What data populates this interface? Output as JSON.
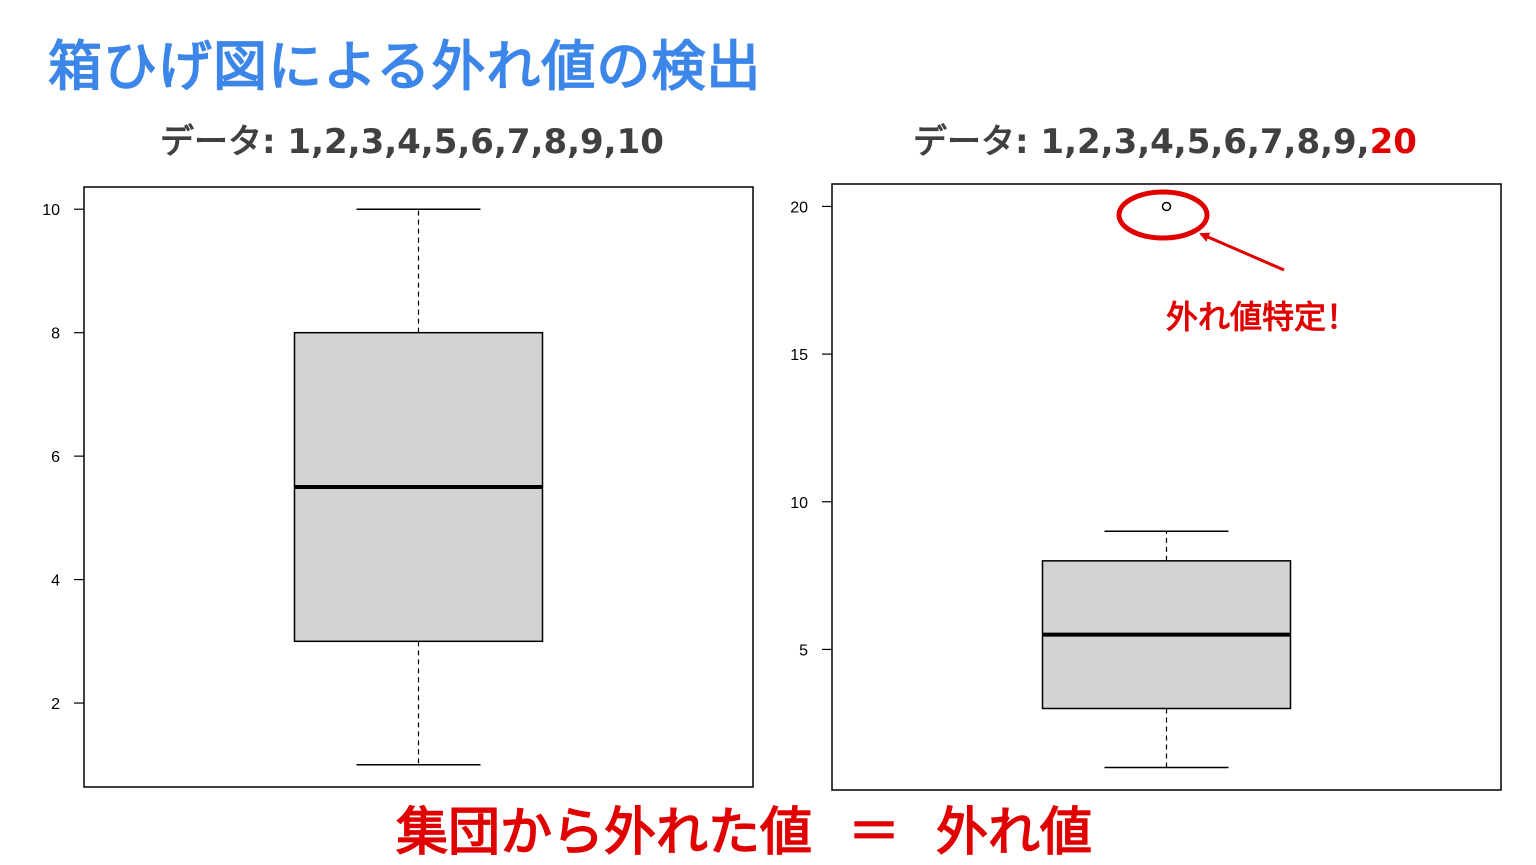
{
  "title": "箱ひげ図による外れ値の検出",
  "annotation": {
    "outlier_label": "外れ値特定！",
    "color": "#e00000"
  },
  "caption": {
    "left": "集団から外れた値",
    "equals": "＝",
    "right": "外れ値"
  },
  "colors": {
    "title": "#3b86e8",
    "highlight": "#e00000",
    "box_fill": "#d3d3d3"
  },
  "chart_data": [
    {
      "type": "boxplot",
      "title_prefix": "データ: 1,2,3,4,5,6,7,8,9,",
      "title_highlight": "",
      "title_suffix": "10",
      "ylim": [
        0.64,
        10.36
      ],
      "yticks": [
        2,
        4,
        6,
        8,
        10
      ],
      "stats": {
        "whisker_low": 1,
        "q1": 3,
        "median": 5.5,
        "q3": 8,
        "whisker_high": 10
      },
      "outliers": []
    },
    {
      "type": "boxplot",
      "title_prefix": "データ: 1,2,3,4,5,6,7,8,9,",
      "title_highlight": "20",
      "title_suffix": "",
      "ylim": [
        0.24,
        20.76
      ],
      "yticks": [
        5,
        10,
        15,
        20
      ],
      "stats": {
        "whisker_low": 1,
        "q1": 3,
        "median": 5.5,
        "q3": 8,
        "whisker_high": 9
      },
      "outliers": [
        20
      ]
    }
  ]
}
